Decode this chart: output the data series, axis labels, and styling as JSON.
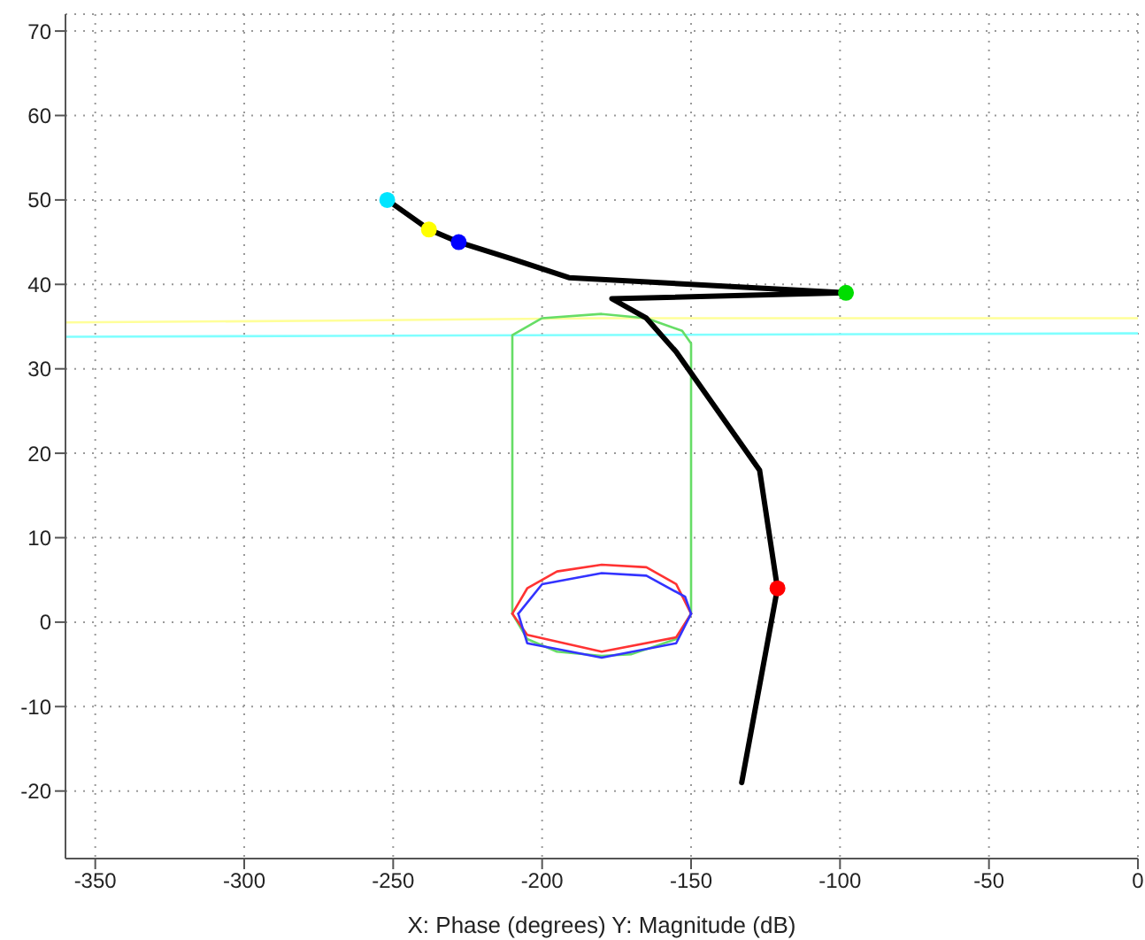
{
  "chart_data": {
    "type": "line",
    "xlabel": "X: Phase (degrees)  Y: Magnitude (dB)",
    "xlim": [
      -360,
      0
    ],
    "xticks": [
      -350,
      -300,
      -250,
      -200,
      -150,
      -100,
      -50,
      0
    ],
    "ylim": [
      -28,
      72
    ],
    "yticks": [
      -20,
      -10,
      0,
      10,
      20,
      30,
      40,
      50,
      60,
      70
    ],
    "grid": true,
    "marker": "none",
    "line_style": "solid",
    "series": [
      {
        "color": "#ffff99",
        "x": [
          -360,
          -270,
          -180,
          -90,
          0
        ],
        "values": [
          35.5,
          35.7,
          36,
          36,
          36
        ]
      },
      {
        "color": "#80ffff",
        "x": [
          -360,
          -270,
          -180,
          -90,
          0
        ],
        "values": [
          33.8,
          33.9,
          34,
          34.1,
          34.2
        ]
      },
      {
        "color": "#66dd66",
        "x": [
          -210,
          -210,
          -200,
          -180,
          -165,
          -153,
          -150,
          -150
        ],
        "values": [
          1,
          34,
          36,
          36.5,
          36,
          34.5,
          33,
          1
        ]
      },
      {
        "color": "#66dd66",
        "x": [
          -210,
          -205,
          -195,
          -180,
          -170,
          -155,
          -150
        ],
        "values": [
          1,
          -2,
          -3.5,
          -4,
          -3.8,
          -2,
          1
        ]
      },
      {
        "color": "#ff3333",
        "x": [
          -210,
          -205,
          -195,
          -180,
          -165,
          -155,
          -150
        ],
        "values": [
          1,
          4,
          6,
          6.8,
          6.5,
          4.5,
          1
        ]
      },
      {
        "color": "#ff3333",
        "x": [
          -210,
          -205,
          -180,
          -155,
          -150
        ],
        "values": [
          1,
          -1.5,
          -3.5,
          -1.8,
          1
        ]
      },
      {
        "color": "#3333ff",
        "x": [
          -208,
          -200,
          -180,
          -165,
          -152,
          -150
        ],
        "values": [
          1,
          4.5,
          5.8,
          5.5,
          3,
          1
        ]
      },
      {
        "color": "#3333ff",
        "x": [
          -208,
          -205,
          -180,
          -155,
          -150
        ],
        "values": [
          1,
          -2.5,
          -4.2,
          -2.5,
          1
        ]
      },
      {
        "color": "#000000",
        "x": [
          -252,
          -238,
          -228,
          -210,
          -191,
          -98,
          -176.6,
          -165,
          -155,
          -145,
          -135,
          -127,
          -121,
          -133
        ],
        "values": [
          50,
          46.5,
          45,
          43,
          40.8,
          39,
          38.3,
          36,
          32,
          27,
          22,
          18,
          4,
          -19
        ]
      },
      {
        "type": "scatter",
        "marker": "circle",
        "x": [
          -252,
          -238,
          -228,
          -98,
          -121
        ],
        "values": [
          50,
          46.5,
          45,
          39,
          4
        ],
        "colors": [
          "#00e5ff",
          "#ffff00",
          "#0000ff",
          "#00dd00",
          "#ff0000"
        ]
      }
    ]
  }
}
